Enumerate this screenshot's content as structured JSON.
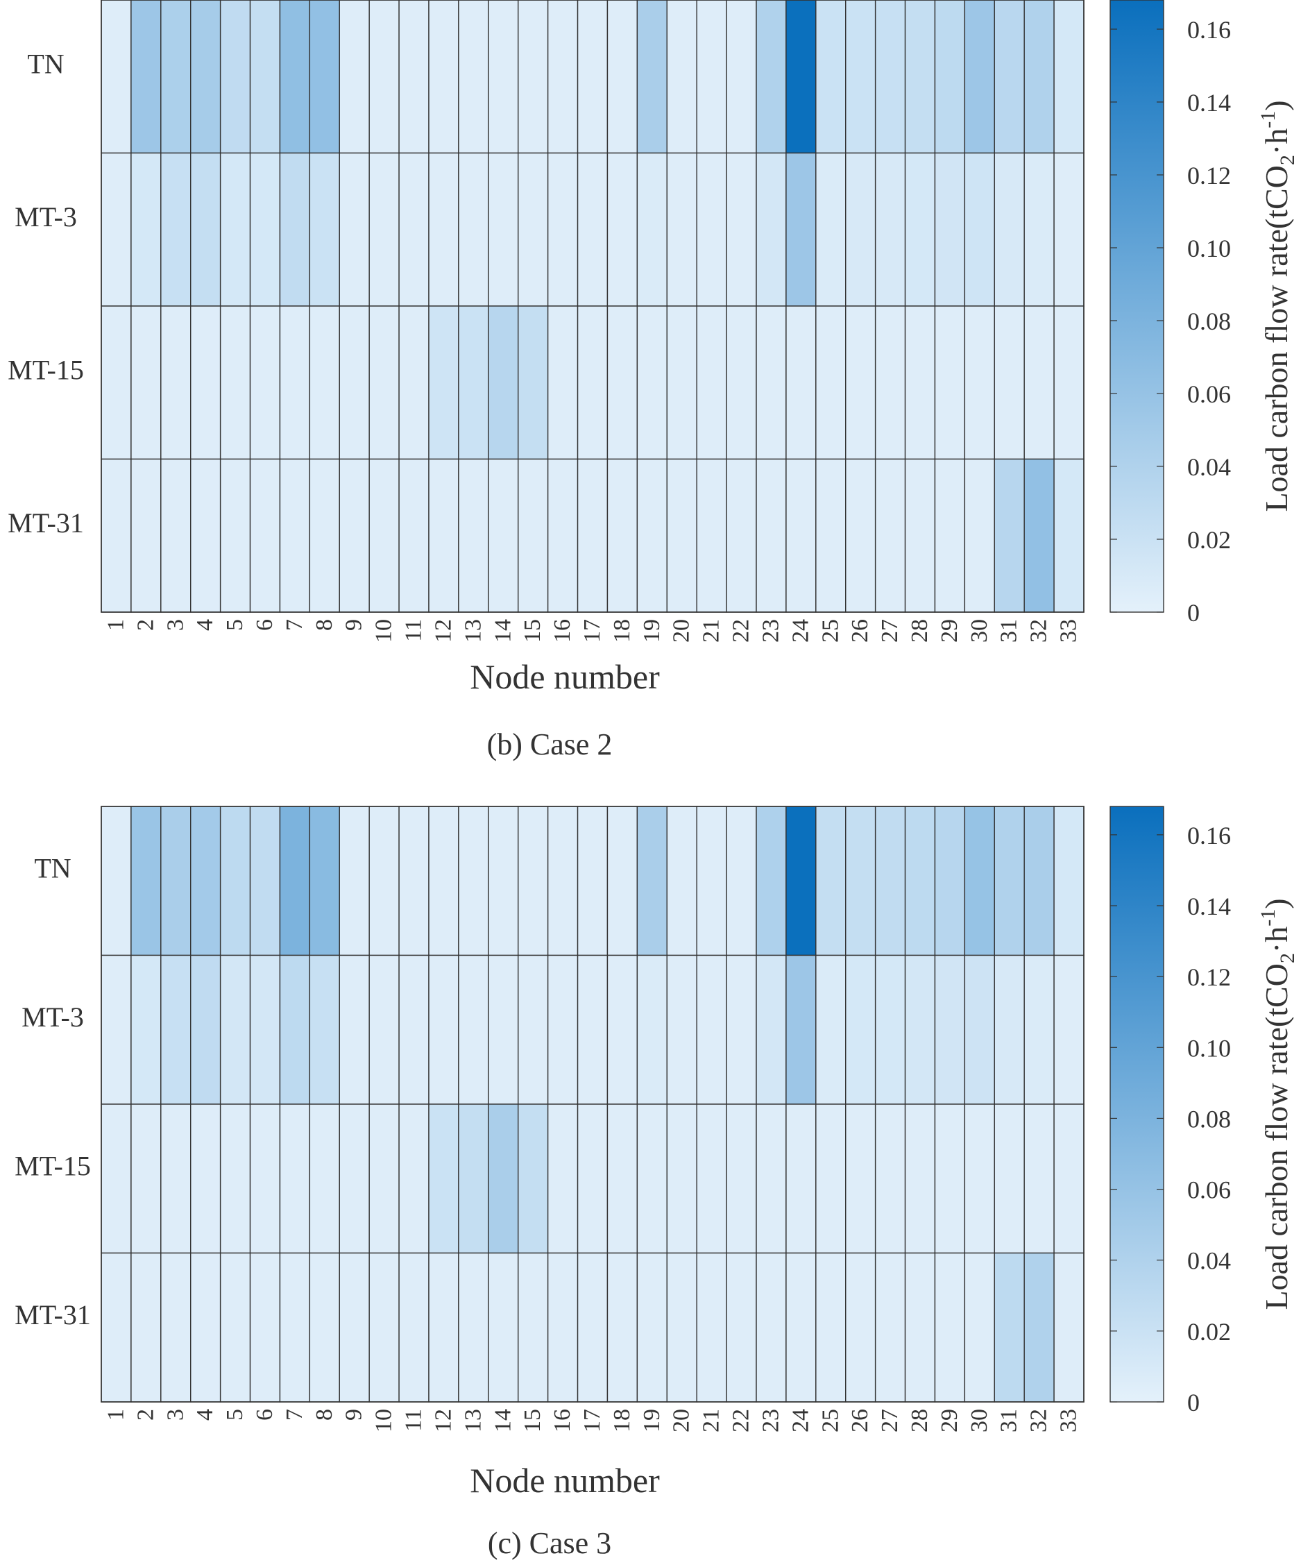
{
  "chart_data": [
    {
      "type": "heatmap",
      "caption": "(b) Case 2",
      "xlabel": "Node number",
      "colorbar_label_main": "Load carbon flow rate(tCO",
      "colorbar_label_sub": "2",
      "colorbar_label_mid": "·h",
      "colorbar_label_sup": "-1",
      "colorbar_label_end": ")",
      "colorbar_range": [
        0,
        0.168
      ],
      "colorbar_ticks": [
        "0",
        "0.02",
        "0.04",
        "0.06",
        "0.08",
        "0.10",
        "0.12",
        "0.14",
        "0.16"
      ],
      "rows": [
        "TN",
        "MT-3",
        "MT-15",
        "MT-31"
      ],
      "columns": [
        "1",
        "2",
        "3",
        "4",
        "5",
        "6",
        "7",
        "8",
        "9",
        "10",
        "11",
        "12",
        "13",
        "14",
        "15",
        "16",
        "17",
        "18",
        "19",
        "20",
        "21",
        "22",
        "23",
        "24",
        "25",
        "26",
        "27",
        "28",
        "29",
        "30",
        "31",
        "32",
        "33"
      ],
      "values": [
        [
          0.005,
          0.055,
          0.043,
          0.048,
          0.028,
          0.025,
          0.065,
          0.063,
          0.005,
          0.005,
          0.005,
          0.005,
          0.005,
          0.005,
          0.005,
          0.005,
          0.005,
          0.005,
          0.045,
          0.005,
          0.005,
          0.005,
          0.04,
          0.167,
          0.02,
          0.02,
          0.022,
          0.025,
          0.03,
          0.055,
          0.033,
          0.04,
          0.012
        ],
        [
          0.005,
          0.012,
          0.022,
          0.025,
          0.012,
          0.012,
          0.027,
          0.02,
          0.005,
          0.005,
          0.005,
          0.005,
          0.005,
          0.005,
          0.005,
          0.005,
          0.005,
          0.005,
          0.008,
          0.005,
          0.005,
          0.005,
          0.013,
          0.055,
          0.008,
          0.01,
          0.01,
          0.012,
          0.015,
          0.017,
          0.01,
          0.008,
          0.005
        ],
        [
          0.005,
          0.005,
          0.005,
          0.005,
          0.005,
          0.005,
          0.005,
          0.005,
          0.005,
          0.005,
          0.005,
          0.017,
          0.02,
          0.035,
          0.025,
          0.005,
          0.005,
          0.005,
          0.005,
          0.005,
          0.005,
          0.005,
          0.005,
          0.005,
          0.005,
          0.005,
          0.005,
          0.005,
          0.005,
          0.005,
          0.005,
          0.005,
          0.005
        ],
        [
          0.005,
          0.005,
          0.005,
          0.005,
          0.005,
          0.005,
          0.005,
          0.005,
          0.005,
          0.005,
          0.005,
          0.005,
          0.005,
          0.005,
          0.005,
          0.005,
          0.005,
          0.005,
          0.005,
          0.005,
          0.005,
          0.005,
          0.005,
          0.005,
          0.005,
          0.005,
          0.005,
          0.005,
          0.005,
          0.005,
          0.035,
          0.063,
          0.012
        ]
      ]
    },
    {
      "type": "heatmap",
      "caption": "(c) Case 3",
      "xlabel": "Node number",
      "colorbar_label_main": "Load carbon flow rate(tCO",
      "colorbar_label_sub": "2",
      "colorbar_label_mid": "·h",
      "colorbar_label_sup": "-1",
      "colorbar_label_end": ")",
      "colorbar_range": [
        0,
        0.168
      ],
      "colorbar_ticks": [
        "0",
        "0.02",
        "0.04",
        "0.06",
        "0.08",
        "0.10",
        "0.12",
        "0.14",
        "0.16"
      ],
      "rows": [
        "TN",
        "MT-3",
        "MT-15",
        "MT-31"
      ],
      "columns": [
        "1",
        "2",
        "3",
        "4",
        "5",
        "6",
        "7",
        "8",
        "9",
        "10",
        "11",
        "12",
        "13",
        "14",
        "15",
        "16",
        "17",
        "18",
        "19",
        "20",
        "21",
        "22",
        "23",
        "24",
        "25",
        "26",
        "27",
        "28",
        "29",
        "30",
        "31",
        "32",
        "33"
      ],
      "values": [
        [
          0.005,
          0.057,
          0.045,
          0.05,
          0.03,
          0.027,
          0.08,
          0.07,
          0.005,
          0.005,
          0.005,
          0.005,
          0.005,
          0.005,
          0.005,
          0.005,
          0.005,
          0.005,
          0.045,
          0.005,
          0.005,
          0.005,
          0.042,
          0.167,
          0.025,
          0.025,
          0.027,
          0.03,
          0.035,
          0.06,
          0.04,
          0.045,
          0.012
        ],
        [
          0.005,
          0.012,
          0.022,
          0.028,
          0.013,
          0.013,
          0.03,
          0.022,
          0.005,
          0.005,
          0.005,
          0.005,
          0.005,
          0.005,
          0.005,
          0.005,
          0.005,
          0.005,
          0.008,
          0.005,
          0.005,
          0.005,
          0.013,
          0.055,
          0.008,
          0.012,
          0.012,
          0.013,
          0.015,
          0.018,
          0.01,
          0.008,
          0.005
        ],
        [
          0.005,
          0.005,
          0.005,
          0.005,
          0.005,
          0.005,
          0.005,
          0.005,
          0.005,
          0.005,
          0.005,
          0.02,
          0.025,
          0.045,
          0.025,
          0.005,
          0.005,
          0.005,
          0.005,
          0.005,
          0.005,
          0.005,
          0.005,
          0.005,
          0.005,
          0.005,
          0.005,
          0.005,
          0.005,
          0.005,
          0.005,
          0.005,
          0.005
        ],
        [
          0.005,
          0.005,
          0.005,
          0.005,
          0.005,
          0.005,
          0.005,
          0.005,
          0.005,
          0.005,
          0.005,
          0.005,
          0.005,
          0.005,
          0.005,
          0.005,
          0.005,
          0.005,
          0.005,
          0.005,
          0.005,
          0.005,
          0.005,
          0.005,
          0.005,
          0.005,
          0.005,
          0.005,
          0.005,
          0.005,
          0.03,
          0.04,
          0.005
        ]
      ]
    }
  ],
  "colors": {
    "low": "#e4f1fb",
    "high": "#0a6fbd",
    "grid": "#333333",
    "text": "#333333"
  }
}
